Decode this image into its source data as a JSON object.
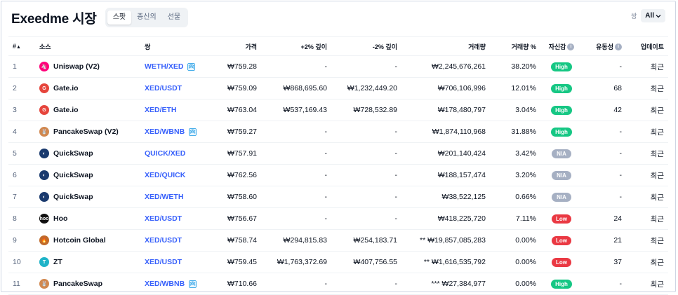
{
  "header": {
    "title": "Exeedme 시장",
    "tabs": [
      {
        "label": "스팟",
        "active": true
      },
      {
        "label": "종신의",
        "active": false
      },
      {
        "label": "선물",
        "active": false
      }
    ],
    "pair_filter_label": "쌍",
    "pair_filter_value": "All"
  },
  "table": {
    "columns": {
      "rank": "#",
      "source": "소스",
      "pair": "쌍",
      "price": "가격",
      "depth_plus": "+2% 깊이",
      "depth_minus": "-2% 깊이",
      "volume": "거래량",
      "volume_pct": "거래량 %",
      "confidence": "자신감",
      "liquidity": "유동성",
      "updated": "업데이트"
    },
    "rows": [
      {
        "rank": "1",
        "source": "Uniswap (V2)",
        "logo": "uniswap-logo",
        "pair": "WETH/XED",
        "pair_icon": true,
        "price": "₩759.28",
        "depth_plus": "-",
        "depth_minus": "-",
        "volume": "₩2,245,676,261",
        "volume_pct": "38.20%",
        "confidence": "High",
        "liquidity": "-",
        "updated": "최근"
      },
      {
        "rank": "2",
        "source": "Gate.io",
        "logo": "gateio-logo",
        "pair": "XED/USDT",
        "pair_icon": false,
        "price": "₩759.09",
        "depth_plus": "₩868,695.60",
        "depth_minus": "₩1,232,449.20",
        "volume": "₩706,106,996",
        "volume_pct": "12.01%",
        "confidence": "High",
        "liquidity": "68",
        "updated": "최근"
      },
      {
        "rank": "3",
        "source": "Gate.io",
        "logo": "gateio-logo",
        "pair": "XED/ETH",
        "pair_icon": false,
        "price": "₩763.04",
        "depth_plus": "₩537,169.43",
        "depth_minus": "₩728,532.89",
        "volume": "₩178,480,797",
        "volume_pct": "3.04%",
        "confidence": "High",
        "liquidity": "42",
        "updated": "최근"
      },
      {
        "rank": "4",
        "source": "PancakeSwap (V2)",
        "logo": "pancakeswap-logo",
        "pair": "XED/WBNB",
        "pair_icon": true,
        "price": "₩759.27",
        "depth_plus": "-",
        "depth_minus": "-",
        "volume": "₩1,874,110,968",
        "volume_pct": "31.88%",
        "confidence": "High",
        "liquidity": "-",
        "updated": "최근"
      },
      {
        "rank": "5",
        "source": "QuickSwap",
        "logo": "quickswap-logo",
        "pair": "QUICK/XED",
        "pair_icon": false,
        "price": "₩757.91",
        "depth_plus": "-",
        "depth_minus": "-",
        "volume": "₩201,140,424",
        "volume_pct": "3.42%",
        "confidence": "N/A",
        "liquidity": "-",
        "updated": "최근"
      },
      {
        "rank": "6",
        "source": "QuickSwap",
        "logo": "quickswap-logo",
        "pair": "XED/QUICK",
        "pair_icon": false,
        "price": "₩762.56",
        "depth_plus": "-",
        "depth_minus": "-",
        "volume": "₩188,157,474",
        "volume_pct": "3.20%",
        "confidence": "N/A",
        "liquidity": "-",
        "updated": "최근"
      },
      {
        "rank": "7",
        "source": "QuickSwap",
        "logo": "quickswap-logo",
        "pair": "XED/WETH",
        "pair_icon": false,
        "price": "₩758.60",
        "depth_plus": "-",
        "depth_minus": "-",
        "volume": "₩38,522,125",
        "volume_pct": "0.66%",
        "confidence": "N/A",
        "liquidity": "-",
        "updated": "최근"
      },
      {
        "rank": "8",
        "source": "Hoo",
        "logo": "hoo-logo",
        "pair": "XED/USDT",
        "pair_icon": false,
        "price": "₩756.67",
        "depth_plus": "-",
        "depth_minus": "-",
        "volume": "₩418,225,720",
        "volume_pct": "7.11%",
        "confidence": "Low",
        "liquidity": "24",
        "updated": "최근"
      },
      {
        "rank": "9",
        "source": "Hotcoin Global",
        "logo": "hotcoin-logo",
        "pair": "XED/USDT",
        "pair_icon": false,
        "price": "₩758.74",
        "depth_plus": "₩294,815.83",
        "depth_minus": "₩254,183.71",
        "volume": "** ₩19,857,085,283",
        "volume_pct": "0.00%",
        "confidence": "Low",
        "liquidity": "21",
        "updated": "최근"
      },
      {
        "rank": "10",
        "source": "ZT",
        "logo": "zt-logo",
        "pair": "XED/USDT",
        "pair_icon": false,
        "price": "₩759.45",
        "depth_plus": "₩1,763,372.69",
        "depth_minus": "₩407,756.55",
        "volume": "** ₩1,616,535,792",
        "volume_pct": "0.00%",
        "confidence": "Low",
        "liquidity": "37",
        "updated": "최근"
      },
      {
        "rank": "11",
        "source": "PancakeSwap",
        "logo": "pancakeswap-logo",
        "pair": "XED/WBNB",
        "pair_icon": true,
        "price": "₩710.66",
        "depth_plus": "-",
        "depth_minus": "-",
        "volume": "*** ₩27,384,977",
        "volume_pct": "0.00%",
        "confidence": "High",
        "liquidity": "-",
        "updated": "최근"
      }
    ]
  },
  "colors": {
    "link": "#3861fb",
    "high": "#16c784",
    "low": "#ea3943",
    "na": "#a6b0c3",
    "uniswap": "#ff007a",
    "gateio": "#e6453c",
    "pancakeswap": "#d1884f",
    "quickswap": "#1a3a6e",
    "hoo": "#111111",
    "hotcoin": "#c06a2a",
    "zt": "#1fb3c8"
  }
}
